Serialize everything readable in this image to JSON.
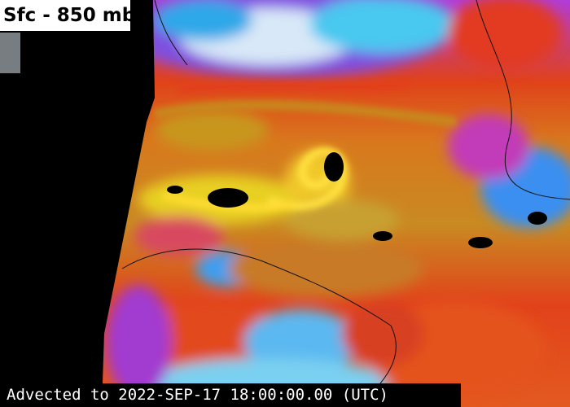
{
  "header": {
    "title": "Sfc - 850 mb"
  },
  "footer": {
    "caption": "Advected to 2022-SEP-17 18:00:00.00 (UTC)"
  }
}
